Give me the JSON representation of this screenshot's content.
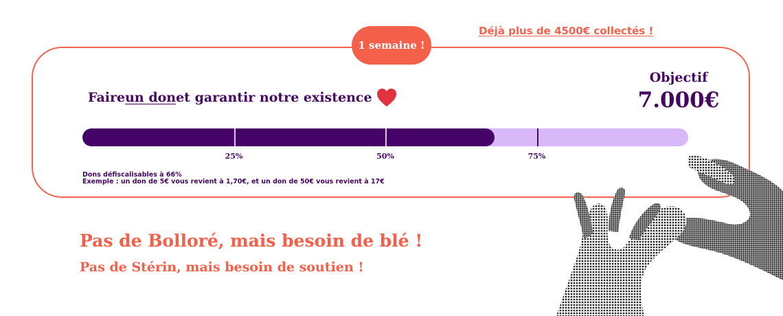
{
  "header": {
    "collected_link": "Déjà plus de 4500€ collectés !",
    "time_left": "1 semaine !"
  },
  "campaign": {
    "cta_before": "Faire ",
    "cta_link": "un don",
    "cta_after": " et garantir notre existence",
    "cta_icon": "heart-icon",
    "goal_label": "Objectif",
    "goal_value": "7.000€"
  },
  "progress": {
    "fraction": 0.68,
    "ticks": [
      {
        "label": "25%",
        "fraction": 0.25
      },
      {
        "label": "50%",
        "fraction": 0.5
      },
      {
        "label": "75%",
        "fraction": 0.75
      }
    ]
  },
  "tax": {
    "line1": "Dons défiscalisables à 66%",
    "line2": "Exemple : un don de 5€ vous revient à 1,70€, et un don de 50€ vous revient à 17€"
  },
  "slogans": {
    "line1": "Pas de Bolloré, mais besoin de blé !",
    "line2": "Pas de Stérin, mais besoin de soutien !"
  },
  "colors": {
    "accent": "#f5604a",
    "purple": "#45036a",
    "lavender": "#d9b8f8",
    "heart": "#e0323f"
  },
  "image": {
    "icon": "heart-hands-image"
  }
}
